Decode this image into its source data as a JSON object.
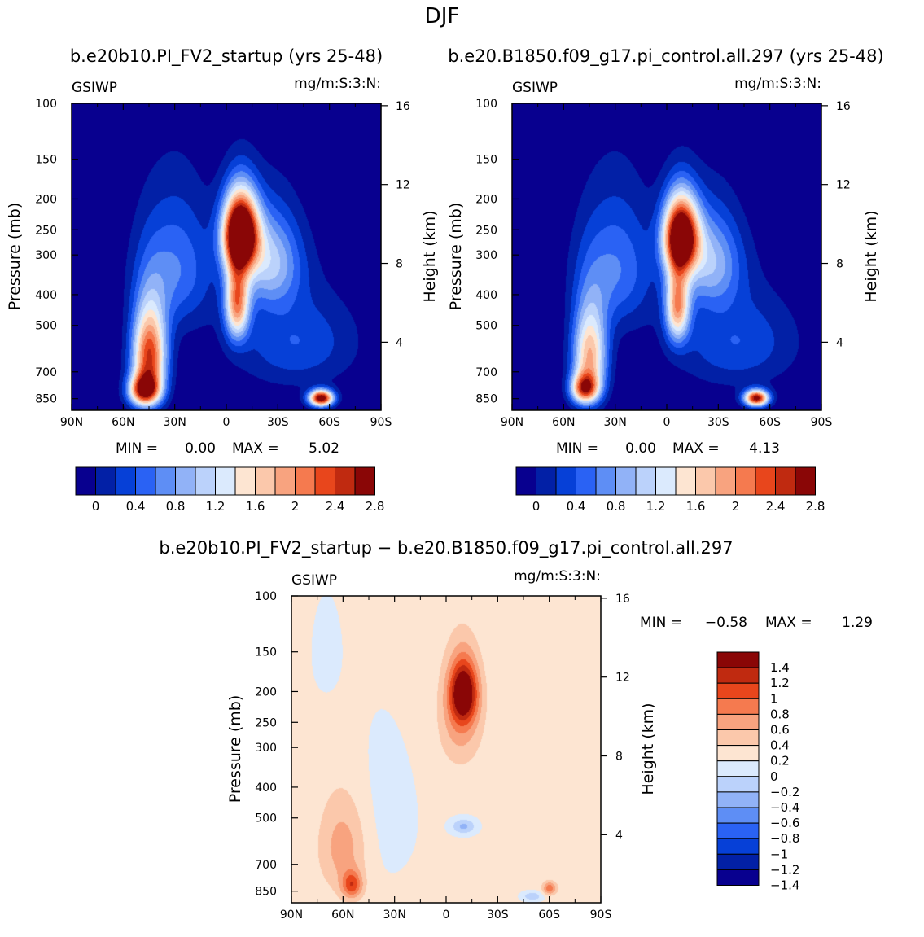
{
  "figure": {
    "title": "DJF",
    "left_panel_title": "b.e20b10.PI_FV2_startup (yrs 25-48)",
    "right_panel_title": "b.e20.B1850.f09_g17.pi_control.all.297 (yrs 25-48)",
    "diff_title": "b.e20b10.PI_FV2_startup − b.e20.B1850.f09_g17.pi_control.all.297"
  },
  "chart_data": [
    {
      "type": "heatmap",
      "id": "panel-1",
      "variable": "GSIWP",
      "units": "mg/m:S:3:N:",
      "min_label": "MIN =",
      "min_value": "0.00",
      "max_label": "MAX =",
      "max_value": "5.02",
      "xlabel": "",
      "ylabel": "Pressure (mb)",
      "y2label": "Height (km)",
      "x_ticks": [
        "90N",
        "60N",
        "30N",
        "0",
        "30S",
        "60S",
        "90S"
      ],
      "x_tick_values": [
        -90,
        -60,
        -30,
        0,
        30,
        60,
        90
      ],
      "y_ticks": [
        "100",
        "150",
        "200",
        "250",
        "300",
        "400",
        "500",
        "700",
        "850"
      ],
      "y_tick_values": [
        100,
        150,
        200,
        250,
        300,
        400,
        500,
        700,
        850
      ],
      "y2_ticks": [
        "4",
        "8",
        "12",
        "16"
      ],
      "y2_tick_values": [
        4,
        8,
        12,
        16
      ],
      "xlim": [
        -90,
        90
      ],
      "ylim": [
        100,
        925
      ],
      "features": [
        {
          "lat": -45,
          "p": 620,
          "amp": 2.6,
          "slat": 10,
          "sp": 210
        },
        {
          "lat": -48,
          "p": 800,
          "amp": 2.4,
          "slat": 9,
          "sp": 90
        },
        {
          "lat": 8,
          "p": 255,
          "amp": 3.8,
          "slat": 10,
          "sp": 70
        },
        {
          "lat": 6,
          "p": 420,
          "amp": 2.1,
          "slat": 7,
          "sp": 120
        },
        {
          "lat": 25,
          "p": 310,
          "amp": 1.2,
          "slat": 18,
          "sp": 110
        },
        {
          "lat": 55,
          "p": 845,
          "amp": 3.1,
          "slat": 7,
          "sp": 50
        },
        {
          "lat": -30,
          "p": 330,
          "amp": 0.8,
          "slat": 22,
          "sp": 160
        },
        {
          "lat": 40,
          "p": 560,
          "amp": 0.6,
          "slat": 35,
          "sp": 200
        }
      ],
      "colorbar_labels": [
        "0",
        "0.4",
        "0.8",
        "1.2",
        "1.6",
        "2",
        "2.4",
        "2.8"
      ]
    },
    {
      "type": "heatmap",
      "id": "panel-2",
      "variable": "GSIWP",
      "units": "mg/m:S:3:N:",
      "min_label": "MIN =",
      "min_value": "0.00",
      "max_label": "MAX =",
      "max_value": "4.13",
      "xlabel": "",
      "ylabel": "Pressure (mb)",
      "y2label": "Height (km)",
      "x_ticks": [
        "90N",
        "60N",
        "30N",
        "0",
        "30S",
        "60S",
        "90S"
      ],
      "x_tick_values": [
        -90,
        -60,
        -30,
        0,
        30,
        60,
        90
      ],
      "y_ticks": [
        "100",
        "150",
        "200",
        "250",
        "300",
        "400",
        "500",
        "700",
        "850"
      ],
      "y_tick_values": [
        100,
        150,
        200,
        250,
        300,
        400,
        500,
        700,
        850
      ],
      "y2_ticks": [
        "4",
        "8",
        "12",
        "16"
      ],
      "y2_tick_values": [
        4,
        8,
        12,
        16
      ],
      "xlim": [
        -90,
        90
      ],
      "ylim": [
        100,
        925
      ],
      "features": [
        {
          "lat": -45,
          "p": 620,
          "amp": 2.0,
          "slat": 10,
          "sp": 210
        },
        {
          "lat": -48,
          "p": 790,
          "amp": 2.1,
          "slat": 8,
          "sp": 85
        },
        {
          "lat": 8,
          "p": 260,
          "amp": 3.4,
          "slat": 10,
          "sp": 70
        },
        {
          "lat": 6,
          "p": 430,
          "amp": 2.0,
          "slat": 7,
          "sp": 120
        },
        {
          "lat": 25,
          "p": 310,
          "amp": 1.1,
          "slat": 18,
          "sp": 110
        },
        {
          "lat": 52,
          "p": 845,
          "amp": 2.9,
          "slat": 7,
          "sp": 50
        },
        {
          "lat": -30,
          "p": 330,
          "amp": 0.8,
          "slat": 22,
          "sp": 160
        },
        {
          "lat": 40,
          "p": 560,
          "amp": 0.6,
          "slat": 35,
          "sp": 200
        }
      ],
      "colorbar_labels": [
        "0",
        "0.4",
        "0.8",
        "1.2",
        "1.6",
        "2",
        "2.4",
        "2.8"
      ]
    },
    {
      "type": "heatmap",
      "id": "panel-diff",
      "variable": "GSIWP",
      "units": "mg/m:S:3:N:",
      "min_label": "MIN =",
      "min_value": "−0.58",
      "max_label": "MAX =",
      "max_value": "1.29",
      "xlabel": "",
      "ylabel": "Pressure (mb)",
      "y2label": "Height (km)",
      "x_ticks": [
        "90N",
        "60N",
        "30N",
        "0",
        "30S",
        "60S",
        "90S"
      ],
      "x_tick_values": [
        -90,
        -60,
        -30,
        0,
        30,
        60,
        90
      ],
      "y_ticks": [
        "100",
        "150",
        "200",
        "250",
        "300",
        "400",
        "500",
        "700",
        "850"
      ],
      "y_tick_values": [
        100,
        150,
        200,
        250,
        300,
        400,
        500,
        700,
        850
      ],
      "y2_ticks": [
        "4",
        "8",
        "12",
        "16"
      ],
      "y2_tick_values": [
        4,
        8,
        12,
        16
      ],
      "xlim": [
        -90,
        90
      ],
      "ylim": [
        100,
        925
      ],
      "features": [
        {
          "lat": 10,
          "p": 200,
          "amp": 1.3,
          "slat": 8,
          "sp": 45
        },
        {
          "lat": 8,
          "p": 240,
          "amp": 0.5,
          "slat": 12,
          "sp": 90
        },
        {
          "lat": -55,
          "p": 810,
          "amp": 0.8,
          "slat": 6,
          "sp": 80
        },
        {
          "lat": -60,
          "p": 610,
          "amp": 0.5,
          "slat": 14,
          "sp": 220
        },
        {
          "lat": 60,
          "p": 830,
          "amp": 0.7,
          "slat": 4,
          "sp": 40
        },
        {
          "lat": 10,
          "p": 530,
          "amp": -0.5,
          "slat": 7,
          "sp": 30
        },
        {
          "lat": 50,
          "p": 880,
          "amp": -0.4,
          "slat": 6,
          "sp": 30
        },
        {
          "lat": -40,
          "p": 500,
          "amp": -0.12,
          "slat": 25,
          "sp": 300
        },
        {
          "lat": -70,
          "p": 150,
          "amp": -0.1,
          "slat": 10,
          "sp": 60
        }
      ],
      "colorbar_labels": [
        "1.4",
        "1.2",
        "1",
        "0.8",
        "0.6",
        "0.4",
        "0.2",
        "0",
        "−0.2",
        "−0.4",
        "−0.6",
        "−0.8",
        "−1",
        "−1.2",
        "−1.4"
      ]
    }
  ],
  "colorbars": {
    "colors": [
      "#08008f",
      "#0220a6",
      "#0640d7",
      "#2a62f4",
      "#5e8ef5",
      "#91b2f7",
      "#bbd2fb",
      "#dbeafd",
      "#fde5d2",
      "#fbc8ab",
      "#f8a37f",
      "#f57a4f",
      "#e8461c",
      "#c02a10",
      "#8a0606"
    ],
    "seq_levels": [
      0,
      0.2,
      0.4,
      0.6,
      0.8,
      1.0,
      1.2,
      1.4,
      1.6,
      1.8,
      2.0,
      2.2,
      2.4,
      2.6,
      2.8
    ],
    "diff_levels": [
      -1.4,
      -1.2,
      -1.0,
      -0.8,
      -0.6,
      -0.4,
      -0.2,
      0,
      0.2,
      0.4,
      0.6,
      0.8,
      1.0,
      1.2,
      1.4
    ]
  }
}
